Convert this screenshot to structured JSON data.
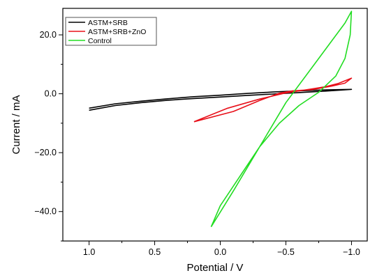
{
  "chart_data": {
    "type": "line",
    "title": "",
    "xlabel": "Potential / V",
    "ylabel": "Current / mA",
    "x_inverted": true,
    "xlim": [
      1.2,
      -1.12
    ],
    "ylim": [
      -50.0,
      29.0
    ],
    "x_ticks": [
      1.0,
      0.5,
      0.0,
      -0.5,
      -1.0
    ],
    "x_tick_labels": [
      "1.0",
      "0.5",
      "0.0",
      "−0.5",
      "−1.0"
    ],
    "y_ticks": [
      20.0,
      0.0,
      -20.0,
      -40.0
    ],
    "y_tick_labels": [
      "20.0",
      "0.0",
      "−20.0",
      "−40.0"
    ],
    "grid": false,
    "legend_position": "top-left",
    "series": [
      {
        "name": "ASTM+SRB",
        "color": "#000000",
        "points": [
          [
            1.0,
            -5.6
          ],
          [
            0.8,
            -4.0
          ],
          [
            0.6,
            -3.0
          ],
          [
            0.4,
            -2.2
          ],
          [
            0.2,
            -1.6
          ],
          [
            0.0,
            -1.1
          ],
          [
            -0.2,
            -0.6
          ],
          [
            -0.4,
            -0.1
          ],
          [
            -0.6,
            0.4
          ],
          [
            -0.8,
            0.9
          ],
          [
            -1.0,
            1.5
          ],
          [
            -0.8,
            1.3
          ],
          [
            -0.6,
            1.0
          ],
          [
            -0.4,
            0.6
          ],
          [
            -0.2,
            0.1
          ],
          [
            0.0,
            -0.5
          ],
          [
            0.2,
            -1.0
          ],
          [
            0.4,
            -1.7
          ],
          [
            0.6,
            -2.5
          ],
          [
            0.8,
            -3.4
          ],
          [
            1.0,
            -4.9
          ]
        ]
      },
      {
        "name": "ASTM+SRB+ZnO",
        "color": "#e8101a",
        "points": [
          [
            0.2,
            -9.5
          ],
          [
            -0.05,
            -5.0
          ],
          [
            -0.3,
            -1.8
          ],
          [
            -0.5,
            0.3
          ],
          [
            -0.65,
            1.3
          ],
          [
            -0.8,
            2.4
          ],
          [
            -0.9,
            3.5
          ],
          [
            -1.0,
            5.3
          ],
          [
            -0.95,
            3.6
          ],
          [
            -0.85,
            2.6
          ],
          [
            -0.7,
            1.4
          ],
          [
            -0.55,
            1.0
          ],
          [
            -0.45,
            0.2
          ],
          [
            -0.3,
            -2.3
          ],
          [
            -0.1,
            -6.0
          ],
          [
            0.2,
            -9.5
          ]
        ]
      },
      {
        "name": "Control",
        "color": "#22dd22",
        "points": [
          [
            0.07,
            -45.2
          ],
          [
            -0.1,
            -33.0
          ],
          [
            -0.3,
            -18.0
          ],
          [
            -0.5,
            -3.0
          ],
          [
            -0.7,
            9.0
          ],
          [
            -0.85,
            18.0
          ],
          [
            -0.95,
            24.0
          ],
          [
            -1.0,
            28.0
          ],
          [
            -0.99,
            20.0
          ],
          [
            -0.95,
            12.0
          ],
          [
            -0.88,
            6.0
          ],
          [
            -0.75,
            0.5
          ],
          [
            -0.6,
            -4.0
          ],
          [
            -0.45,
            -10.0
          ],
          [
            -0.3,
            -18.0
          ],
          [
            -0.15,
            -28.0
          ],
          [
            0.0,
            -38.0
          ],
          [
            0.07,
            -45.2
          ]
        ]
      }
    ]
  }
}
